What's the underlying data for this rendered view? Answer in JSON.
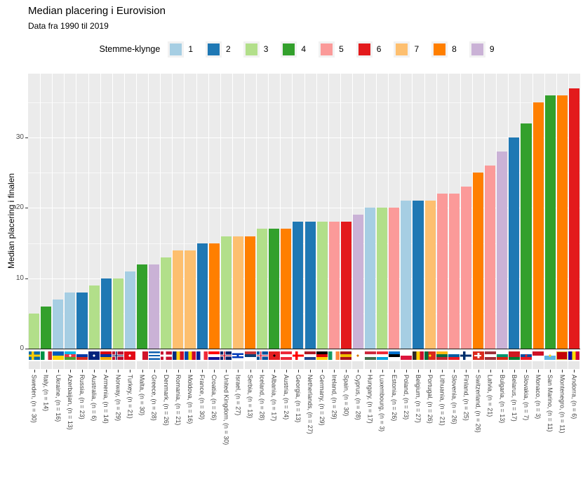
{
  "chart_data": {
    "type": "bar",
    "title": "Median placering i Eurovision",
    "subtitle": "Data fra 1990 til 2019",
    "ylabel": "Median placering i finalen",
    "ylim": [
      0,
      39
    ],
    "yticks": [
      0,
      10,
      20,
      30
    ],
    "grid": true,
    "legend_title": "Stemme-klynge",
    "legend_position": "top-center",
    "clusters": {
      "1": "#a6cee3",
      "2": "#1f78b4",
      "3": "#b2df8a",
      "4": "#33a02c",
      "5": "#fb9a99",
      "6": "#e31a1c",
      "7": "#fdbf6f",
      "8": "#ff7f00",
      "9": "#cab2d6"
    },
    "bars": [
      {
        "country": "Sweden",
        "n": 30,
        "label": "Sweden, (n = 30)",
        "value": 5,
        "cluster": "3",
        "flag": {
          "t": "c",
          "bg": "#006aa7",
          "cr": "#fecc02"
        }
      },
      {
        "country": "Italy",
        "n": 14,
        "label": "Italy, (n = 14)",
        "value": 6,
        "cluster": "4",
        "flag": {
          "t": "v",
          "c": [
            "#009246",
            "#ffffff",
            "#ce2b37"
          ]
        }
      },
      {
        "country": "Ukraine",
        "n": 16,
        "label": "Ukraine, (n = 16)",
        "value": 7,
        "cluster": "1",
        "flag": {
          "t": "h",
          "c": [
            "#005bbb",
            "#ffd500"
          ]
        }
      },
      {
        "country": "Azerbaijan",
        "n": 13,
        "label": "Azerbaijan, (n = 13)",
        "value": 8,
        "cluster": "1",
        "flag": {
          "t": "h",
          "c": [
            "#00b9e4",
            "#ef3340",
            "#509e2f"
          ],
          "em": "#ffffff"
        }
      },
      {
        "country": "Russia",
        "n": 23,
        "label": "Russia, (n = 23)",
        "value": 8,
        "cluster": "2",
        "flag": {
          "t": "h",
          "c": [
            "#ffffff",
            "#0039a6",
            "#d52b1e"
          ]
        }
      },
      {
        "country": "Australia",
        "n": 6,
        "label": "Australia, (n = 6)",
        "value": 9,
        "cluster": "3",
        "flag": {
          "t": "h",
          "c": [
            "#00247d"
          ],
          "em": "#ffffff"
        }
      },
      {
        "country": "Armenia",
        "n": 14,
        "label": "Armenia, (n = 14)",
        "value": 10,
        "cluster": "2",
        "flag": {
          "t": "h",
          "c": [
            "#d90012",
            "#0033a0",
            "#f2a800"
          ]
        }
      },
      {
        "country": "Norway",
        "n": 29,
        "label": "Norway, (n = 29)",
        "value": 10,
        "cluster": "3",
        "flag": {
          "t": "c",
          "bg": "#ba0c2f",
          "cr": "#ffffff",
          "in": "#00205b"
        }
      },
      {
        "country": "Turkey",
        "n": 21,
        "label": "Turkey, (n = 21)",
        "value": 11,
        "cluster": "1",
        "flag": {
          "t": "h",
          "c": [
            "#e30a17"
          ],
          "em": "#ffffff"
        }
      },
      {
        "country": "Malta",
        "n": 30,
        "label": "Malta, (n = 30)",
        "value": 12,
        "cluster": "4",
        "flag": {
          "t": "v",
          "c": [
            "#ffffff",
            "#cf142b"
          ]
        }
      },
      {
        "country": "Greece",
        "n": 28,
        "label": "Greece, (n = 28)",
        "value": 12,
        "cluster": "9",
        "flag": {
          "t": "h",
          "c": [
            "#0d5eaf",
            "#ffffff",
            "#0d5eaf",
            "#ffffff",
            "#0d5eaf"
          ]
        }
      },
      {
        "country": "Denmark",
        "n": 26,
        "label": "Denmark, (n = 26)",
        "value": 13,
        "cluster": "3",
        "flag": {
          "t": "c",
          "bg": "#c8102e",
          "cr": "#ffffff"
        }
      },
      {
        "country": "Romania",
        "n": 21,
        "label": "Romania, (n = 21)",
        "value": 14,
        "cluster": "7",
        "flag": {
          "t": "v",
          "c": [
            "#002b7f",
            "#fcd116",
            "#ce1126"
          ]
        }
      },
      {
        "country": "Moldova",
        "n": 16,
        "label": "Moldova, (n = 16)",
        "value": 14,
        "cluster": "7",
        "flag": {
          "t": "v",
          "c": [
            "#0046ae",
            "#ffd200",
            "#cc092f"
          ]
        }
      },
      {
        "country": "France",
        "n": 30,
        "label": "France, (n = 30)",
        "value": 15,
        "cluster": "2",
        "flag": {
          "t": "v",
          "c": [
            "#002395",
            "#ffffff",
            "#ed2939"
          ]
        }
      },
      {
        "country": "Croatia",
        "n": 26,
        "label": "Croatia, (n = 26)",
        "value": 15,
        "cluster": "8",
        "flag": {
          "t": "h",
          "c": [
            "#ff0000",
            "#ffffff",
            "#171796"
          ]
        }
      },
      {
        "country": "United Kingdom",
        "n": 30,
        "label": "United Kingdom, (n = 30)",
        "value": 16,
        "cluster": "3",
        "flag": {
          "t": "c",
          "bg": "#012169",
          "cr": "#ffffff",
          "in": "#c8102e"
        }
      },
      {
        "country": "Israel",
        "n": 27,
        "label": "Israel, (n = 27)",
        "value": 16,
        "cluster": "7",
        "flag": {
          "t": "h",
          "c": [
            "#ffffff",
            "#0038b8",
            "#ffffff",
            "#0038b8",
            "#ffffff"
          ],
          "em": "#0038b8"
        }
      },
      {
        "country": "Serbia",
        "n": 13,
        "label": "Serbia, (n = 13)",
        "value": 16,
        "cluster": "8",
        "flag": {
          "t": "h",
          "c": [
            "#c6363c",
            "#0c4076",
            "#ffffff"
          ]
        }
      },
      {
        "country": "Iceland",
        "n": 28,
        "label": "Iceland, (n = 28)",
        "value": 17,
        "cluster": "3",
        "flag": {
          "t": "c",
          "bg": "#02529c",
          "cr": "#ffffff",
          "in": "#dc1e35"
        }
      },
      {
        "country": "Albania",
        "n": 17,
        "label": "Albania, (n = 17)",
        "value": 17,
        "cluster": "4",
        "flag": {
          "t": "h",
          "c": [
            "#e41e20"
          ],
          "em": "#000000"
        }
      },
      {
        "country": "Austria",
        "n": 24,
        "label": "Austria, (n = 24)",
        "value": 17,
        "cluster": "8",
        "flag": {
          "t": "h",
          "c": [
            "#ed2939",
            "#ffffff",
            "#ed2939"
          ]
        }
      },
      {
        "country": "Georgia",
        "n": 13,
        "label": "Georgia, (n = 13)",
        "value": 18,
        "cluster": "2",
        "flag": {
          "t": "c",
          "bg": "#ffffff",
          "cr": "#ff0000"
        }
      },
      {
        "country": "Netherlands",
        "n": 27,
        "label": "Netherlands, (n = 27)",
        "value": 18,
        "cluster": "2",
        "flag": {
          "t": "h",
          "c": [
            "#ae1c28",
            "#ffffff",
            "#21468b"
          ]
        }
      },
      {
        "country": "Germany",
        "n": 29,
        "label": "Germany, (n = 29)",
        "value": 18,
        "cluster": "3",
        "flag": {
          "t": "h",
          "c": [
            "#000000",
            "#dd0000",
            "#ffce00"
          ]
        }
      },
      {
        "country": "Ireland",
        "n": 29,
        "label": "Ireland, (n = 29)",
        "value": 18,
        "cluster": "5",
        "flag": {
          "t": "v",
          "c": [
            "#169b62",
            "#ffffff",
            "#ff883e"
          ]
        }
      },
      {
        "country": "Spain",
        "n": 30,
        "label": "Spain, (n = 30)",
        "value": 18,
        "cluster": "6",
        "flag": {
          "t": "h",
          "c": [
            "#aa151b",
            "#f1bf00",
            "#aa151b"
          ]
        }
      },
      {
        "country": "Cyprus",
        "n": 28,
        "label": "Cyprus, (n = 28)",
        "value": 19,
        "cluster": "9",
        "flag": {
          "t": "h",
          "c": [
            "#ffffff"
          ],
          "em": "#d57800"
        }
      },
      {
        "country": "Hungary",
        "n": 17,
        "label": "Hungary, (n = 17)",
        "value": 20,
        "cluster": "1",
        "flag": {
          "t": "h",
          "c": [
            "#cd2a3e",
            "#ffffff",
            "#436f4d"
          ]
        }
      },
      {
        "country": "Luxembourg",
        "n": 3,
        "label": "Luxembourg, (n = 3)",
        "value": 20,
        "cluster": "3",
        "flag": {
          "t": "h",
          "c": [
            "#ed2939",
            "#ffffff",
            "#00a1de"
          ]
        }
      },
      {
        "country": "Estonia",
        "n": 26,
        "label": "Estonia, (n = 26)",
        "value": 20,
        "cluster": "5",
        "flag": {
          "t": "h",
          "c": [
            "#0072ce",
            "#000000",
            "#ffffff"
          ]
        }
      },
      {
        "country": "Poland",
        "n": 23,
        "label": "Poland, (n = 23)",
        "value": 21,
        "cluster": "1",
        "flag": {
          "t": "h",
          "c": [
            "#ffffff",
            "#dc143c"
          ]
        }
      },
      {
        "country": "Belgium",
        "n": 27,
        "label": "Belgium, (n = 27)",
        "value": 21,
        "cluster": "2",
        "flag": {
          "t": "v",
          "c": [
            "#2d2926",
            "#ffcd00",
            "#c8102e"
          ]
        }
      },
      {
        "country": "Portugal",
        "n": 26,
        "label": "Portugal, (n = 26)",
        "value": 21,
        "cluster": "7",
        "flag": {
          "t": "v",
          "c": [
            "#046a38",
            "#da291c",
            "#da291c"
          ],
          "em": "#ffe900"
        }
      },
      {
        "country": "Lithuania",
        "n": 21,
        "label": "Lithuania, (n = 21)",
        "value": 22,
        "cluster": "5",
        "flag": {
          "t": "h",
          "c": [
            "#fdb913",
            "#006a44",
            "#c1272d"
          ]
        }
      },
      {
        "country": "Slovenia",
        "n": 26,
        "label": "Slovenia, (n = 26)",
        "value": 22,
        "cluster": "5",
        "flag": {
          "t": "h",
          "c": [
            "#ffffff",
            "#005da4",
            "#ed1c24"
          ]
        }
      },
      {
        "country": "Finland",
        "n": 25,
        "label": "Finland, (n = 25)",
        "value": 23,
        "cluster": "5",
        "flag": {
          "t": "c",
          "bg": "#ffffff",
          "cr": "#002f6c"
        }
      },
      {
        "country": "Switzerland",
        "n": 26,
        "label": "Switzerland, (n = 26)",
        "value": 25,
        "cluster": "8",
        "flag": {
          "t": "p",
          "bg": "#da291c",
          "cr": "#ffffff"
        }
      },
      {
        "country": "Latvia",
        "n": 21,
        "label": "Latvia, (n = 21)",
        "value": 26,
        "cluster": "5",
        "flag": {
          "t": "h",
          "c": [
            "#9e3039",
            "#ffffff",
            "#9e3039"
          ]
        }
      },
      {
        "country": "Bulgaria",
        "n": 13,
        "label": "Bulgaria, (n = 13)",
        "value": 28,
        "cluster": "9",
        "flag": {
          "t": "h",
          "c": [
            "#ffffff",
            "#00966e",
            "#d62612"
          ]
        }
      },
      {
        "country": "Belarus",
        "n": 17,
        "label": "Belarus, (n = 17)",
        "value": 30,
        "cluster": "2",
        "flag": {
          "t": "h",
          "c": [
            "#ce1720",
            "#ce1720",
            "#007c30"
          ]
        }
      },
      {
        "country": "Slovakia",
        "n": 7,
        "label": "Slovakia, (n = 7)",
        "value": 32,
        "cluster": "4",
        "flag": {
          "t": "h",
          "c": [
            "#ffffff",
            "#0b4ea2",
            "#ee1c25"
          ],
          "em": "#ee1c25"
        }
      },
      {
        "country": "Monaco",
        "n": 3,
        "label": "Monaco, (n = 3)",
        "value": 35,
        "cluster": "8",
        "flag": {
          "t": "h",
          "c": [
            "#ce1126",
            "#ffffff"
          ]
        }
      },
      {
        "country": "San Marino",
        "n": 11,
        "label": "San Marino, (n = 11)",
        "value": 36,
        "cluster": "4",
        "flag": {
          "t": "h",
          "c": [
            "#ffffff",
            "#5eb6e4"
          ],
          "em": "#f9d616"
        }
      },
      {
        "country": "Montenegro",
        "n": 11,
        "label": "Montenegro, (n = 11)",
        "value": 36,
        "cluster": "8",
        "flag": {
          "t": "h",
          "c": [
            "#c40308"
          ],
          "bd": "#d3ae3b"
        }
      },
      {
        "country": "Andorra",
        "n": 6,
        "label": "Andorra, (n = 6)",
        "value": 37,
        "cluster": "6",
        "flag": {
          "t": "v",
          "c": [
            "#10069f",
            "#fedd00",
            "#d50032"
          ]
        }
      }
    ]
  },
  "panel": {
    "background": "#ebebeb",
    "gridline_color": "#ffffff",
    "axis_text_color": "#4d4d4d"
  }
}
